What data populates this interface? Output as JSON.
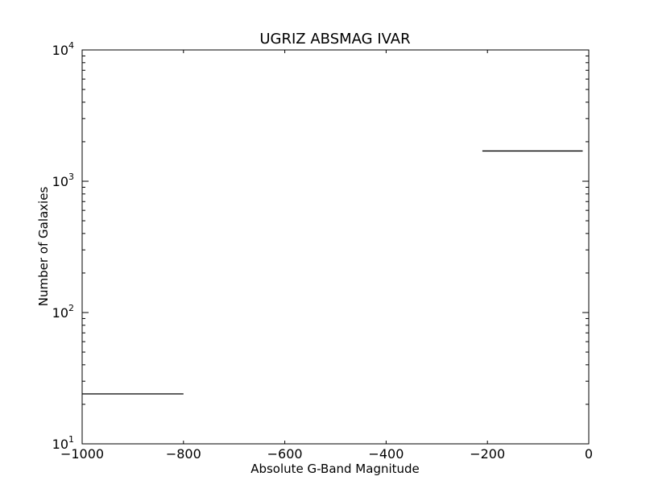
{
  "chart_data": {
    "type": "line",
    "title": "UGRIZ ABSMAG IVAR",
    "xlabel": "Absolute G-Band Magnitude",
    "ylabel": "Number of Galaxies",
    "xlim": [
      -1000,
      0
    ],
    "ylim": [
      10,
      10000
    ],
    "yscale": "log",
    "grid": false,
    "x_ticks": [
      {
        "value": -1000,
        "label": "−1000"
      },
      {
        "value": -800,
        "label": "−800"
      },
      {
        "value": -600,
        "label": "−600"
      },
      {
        "value": -400,
        "label": "−400"
      },
      {
        "value": -200,
        "label": "−200"
      },
      {
        "value": 0,
        "label": "0"
      }
    ],
    "y_ticks": [
      {
        "value": 10,
        "base": "10",
        "exp": "1"
      },
      {
        "value": 100,
        "base": "10",
        "exp": "2"
      },
      {
        "value": 1000,
        "base": "10",
        "exp": "3"
      },
      {
        "value": 10000,
        "base": "10",
        "exp": "4"
      }
    ],
    "series": [
      {
        "color": "#000000",
        "segments": [
          {
            "x": [
              -1000,
              -800
            ],
            "y": [
              24,
              24
            ]
          },
          {
            "x": [
              -210,
              -12
            ],
            "y": [
              1700,
              1700
            ]
          }
        ]
      }
    ]
  }
}
